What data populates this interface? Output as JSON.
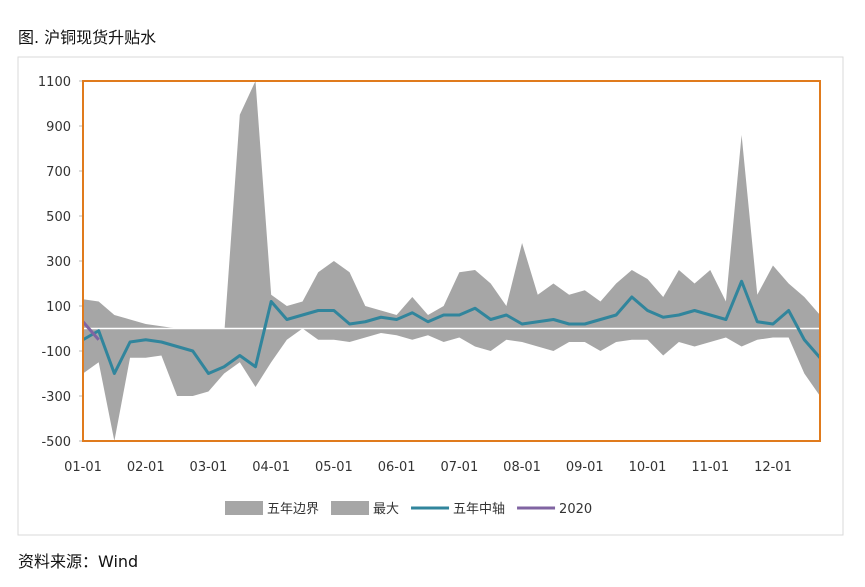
{
  "chart_data": {
    "type": "area-line",
    "title": "图. 沪铜现货升贴水",
    "source": "资料来源：Wind",
    "categories": [
      "01-01",
      null,
      null,
      null,
      "02-01",
      null,
      null,
      null,
      "03-01",
      null,
      null,
      null,
      "04-01",
      null,
      null,
      null,
      "05-01",
      null,
      null,
      null,
      "06-01",
      null,
      null,
      null,
      "07-01",
      null,
      null,
      null,
      "08-01",
      null,
      null,
      null,
      "09-01",
      null,
      null,
      null,
      "10-01",
      null,
      null,
      null,
      "11-01",
      null,
      null,
      null,
      "12-01",
      null,
      null,
      null
    ],
    "ylim": [
      -500,
      1100
    ],
    "yticks": [
      -500,
      -300,
      -100,
      100,
      300,
      500,
      700,
      900,
      1100
    ],
    "frame_color": "#e07b1d",
    "series": [
      {
        "name": "五年边界",
        "kind": "area",
        "color": "#a6a6a6",
        "values": [
          -200,
          -150,
          -500,
          -130,
          -130,
          -120,
          -300,
          -300,
          -280,
          -200,
          -150,
          -260,
          -150,
          -50,
          0,
          -50,
          -50,
          -60,
          -40,
          -20,
          -30,
          -50,
          -30,
          -60,
          -40,
          -80,
          -100,
          -50,
          -60,
          -80,
          -100,
          -60,
          -60,
          -100,
          -60,
          -50,
          -50,
          -120,
          -60,
          -80,
          -60,
          -40,
          -80,
          -50,
          -40,
          -40,
          -200,
          -300
        ]
      },
      {
        "name": "最大",
        "kind": "area",
        "color": "#a6a6a6",
        "values": [
          130,
          120,
          60,
          40,
          20,
          10,
          0,
          -50,
          -50,
          -30,
          950,
          1100,
          150,
          100,
          120,
          250,
          300,
          250,
          100,
          80,
          60,
          140,
          60,
          100,
          250,
          260,
          200,
          100,
          380,
          150,
          200,
          150,
          170,
          120,
          200,
          260,
          220,
          140,
          260,
          200,
          260,
          120,
          860,
          150,
          280,
          200,
          140,
          60
        ]
      },
      {
        "name": "五年中轴",
        "kind": "line",
        "color": "#31859c",
        "values": [
          -50,
          -10,
          -200,
          -60,
          -50,
          -60,
          -80,
          -100,
          -200,
          -170,
          -120,
          -170,
          120,
          40,
          60,
          80,
          80,
          20,
          30,
          50,
          40,
          70,
          30,
          60,
          60,
          90,
          40,
          60,
          20,
          30,
          40,
          20,
          20,
          40,
          60,
          140,
          80,
          50,
          60,
          80,
          60,
          40,
          210,
          30,
          20,
          80,
          -50,
          -130
        ]
      },
      {
        "name": "2020",
        "kind": "line",
        "color": "#8064a2",
        "values": [
          30,
          -50,
          null,
          null,
          null,
          null,
          null,
          null,
          null,
          null,
          null,
          null,
          null,
          null,
          null,
          null,
          null,
          null,
          null,
          null,
          null,
          null,
          null,
          null,
          null,
          null,
          null,
          null,
          null,
          null,
          null,
          null,
          null,
          null,
          null,
          null,
          null,
          null,
          null,
          null,
          null,
          null,
          null,
          null,
          null,
          null,
          null,
          null
        ]
      }
    ]
  }
}
